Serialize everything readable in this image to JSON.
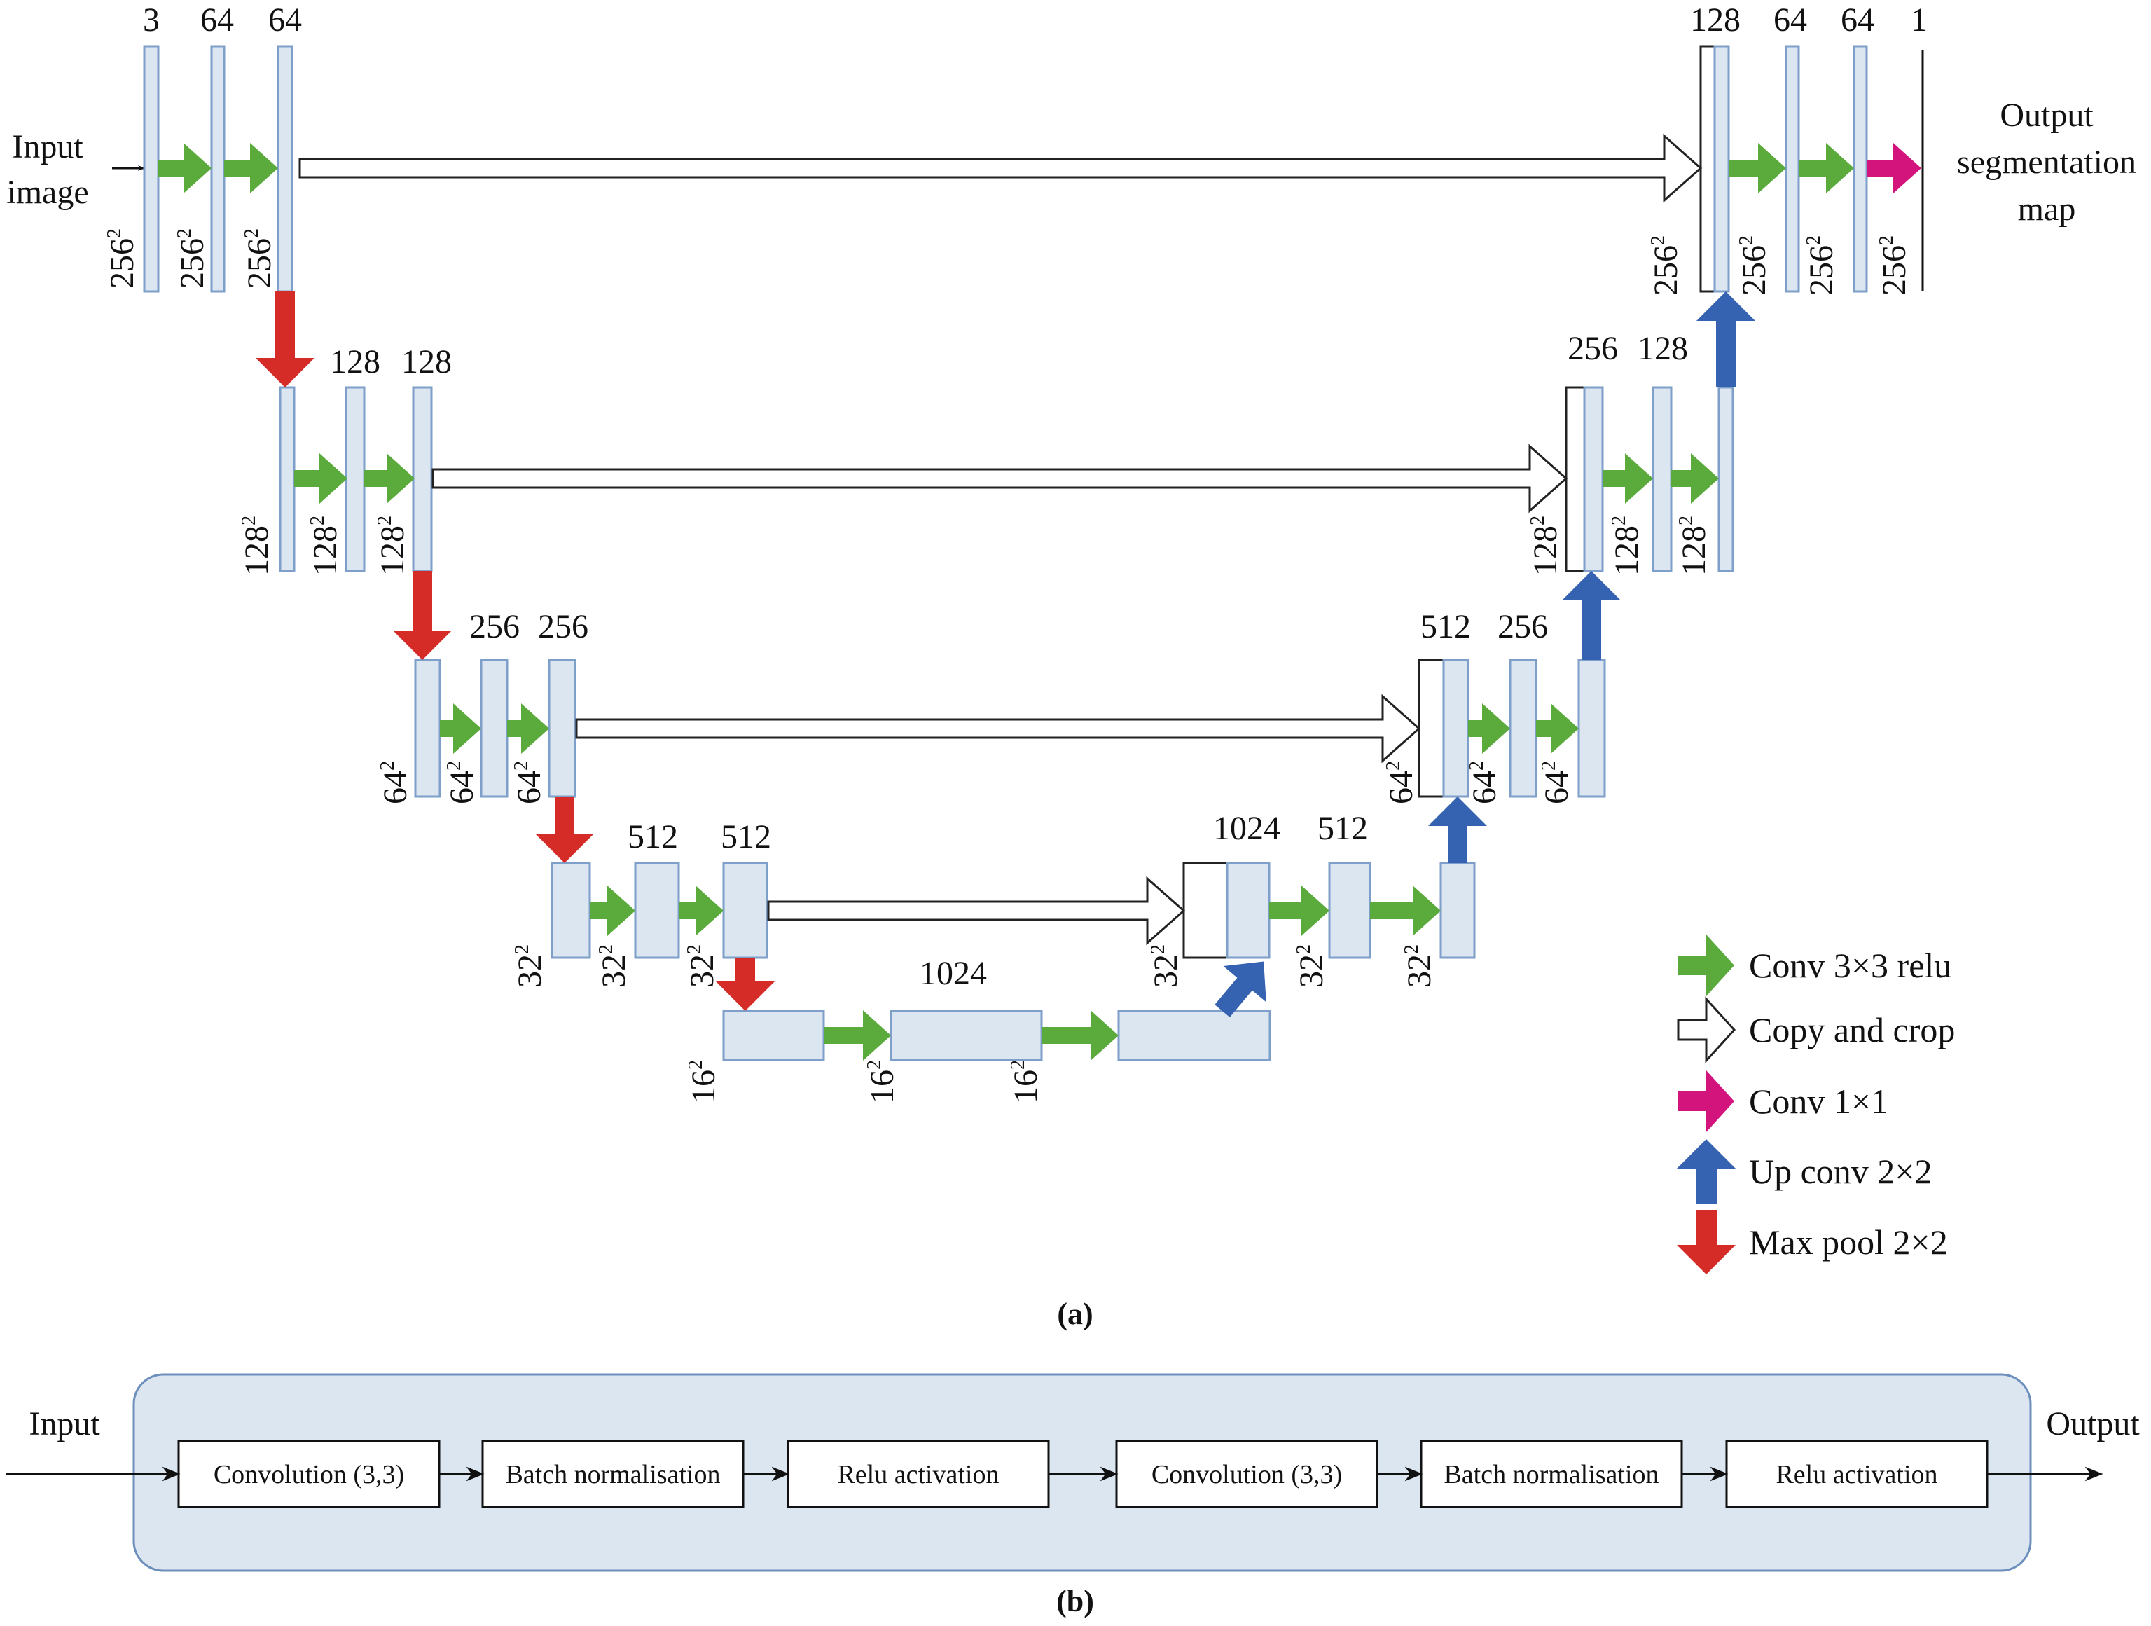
{
  "colors": {
    "block_fill": "#dce6f1",
    "block_stroke": "#7e9fc9",
    "conv": "#5aab3c",
    "copy": "#ffffff",
    "conv1x1": "#d4147d",
    "upconv": "#3662b2",
    "maxpool": "#d62c28",
    "panel_fill": "#dce6f1",
    "panel_stroke": "#6d8fbc"
  },
  "panel_a": {
    "caption": "(a)",
    "input_label": [
      "Input",
      "image"
    ],
    "output_label": [
      "Output",
      "segmentation",
      "map"
    ],
    "channels": [
      {
        "id": "l1-in",
        "text": "3"
      },
      {
        "id": "l1-c1",
        "text": "64"
      },
      {
        "id": "l1-c2",
        "text": "64"
      },
      {
        "id": "l2-c1",
        "text": "128"
      },
      {
        "id": "l2-c2",
        "text": "128"
      },
      {
        "id": "l3-c1",
        "text": "256"
      },
      {
        "id": "l3-c2",
        "text": "256"
      },
      {
        "id": "l4-c1",
        "text": "512"
      },
      {
        "id": "l4-c2",
        "text": "512"
      },
      {
        "id": "l5-c1",
        "text": "1024"
      },
      {
        "id": "u4-cat",
        "text": "1024"
      },
      {
        "id": "u4-c1",
        "text": "512"
      },
      {
        "id": "u3-cat",
        "text": "512"
      },
      {
        "id": "u3-c1",
        "text": "256"
      },
      {
        "id": "u2-cat",
        "text": "256"
      },
      {
        "id": "u2-c1",
        "text": "128"
      },
      {
        "id": "u1-cat",
        "text": "128"
      },
      {
        "id": "u1-c1",
        "text": "64"
      },
      {
        "id": "u1-c2",
        "text": "64"
      },
      {
        "id": "out",
        "text": "1"
      }
    ],
    "sizes": [
      {
        "id": "l1-a",
        "base": "256",
        "exp": "2"
      },
      {
        "id": "l1-b",
        "base": "256",
        "exp": "2"
      },
      {
        "id": "l1-c",
        "base": "256",
        "exp": "2"
      },
      {
        "id": "l2-a",
        "base": "128",
        "exp": "2"
      },
      {
        "id": "l2-b",
        "base": "128",
        "exp": "2"
      },
      {
        "id": "l2-c",
        "base": "128",
        "exp": "2"
      },
      {
        "id": "l3-a",
        "base": "64",
        "exp": "2"
      },
      {
        "id": "l3-b",
        "base": "64",
        "exp": "2"
      },
      {
        "id": "l3-c",
        "base": "64",
        "exp": "2"
      },
      {
        "id": "l4-a",
        "base": "32",
        "exp": "2"
      },
      {
        "id": "l4-b",
        "base": "32",
        "exp": "2"
      },
      {
        "id": "l4-c",
        "base": "32",
        "exp": "2"
      },
      {
        "id": "l5-a",
        "base": "16",
        "exp": "2"
      },
      {
        "id": "l5-b",
        "base": "16",
        "exp": "2"
      },
      {
        "id": "l5-c",
        "base": "16",
        "exp": "2"
      },
      {
        "id": "u4-a",
        "base": "32",
        "exp": "2"
      },
      {
        "id": "u4-b",
        "base": "32",
        "exp": "2"
      },
      {
        "id": "u4-c",
        "base": "32",
        "exp": "2"
      },
      {
        "id": "u3-a",
        "base": "64",
        "exp": "2"
      },
      {
        "id": "u3-b",
        "base": "64",
        "exp": "2"
      },
      {
        "id": "u3-c",
        "base": "64",
        "exp": "2"
      },
      {
        "id": "u2-a",
        "base": "128",
        "exp": "2"
      },
      {
        "id": "u2-b",
        "base": "128",
        "exp": "2"
      },
      {
        "id": "u2-c",
        "base": "128",
        "exp": "2"
      },
      {
        "id": "u1-a",
        "base": "256",
        "exp": "2"
      },
      {
        "id": "u1-b",
        "base": "256",
        "exp": "2"
      },
      {
        "id": "u1-c",
        "base": "256",
        "exp": "2"
      },
      {
        "id": "u1-d",
        "base": "256",
        "exp": "2"
      }
    ],
    "legend": [
      {
        "type": "conv",
        "label": "Conv 3×3 relu"
      },
      {
        "type": "copy",
        "label": "Copy and crop"
      },
      {
        "type": "conv1x1",
        "label": "Conv 1×1"
      },
      {
        "type": "upconv",
        "label": "Up conv 2×2"
      },
      {
        "type": "maxpool",
        "label": "Max pool 2×2"
      }
    ]
  },
  "panel_b": {
    "caption": "(b)",
    "input_label": "Input",
    "output_label": "Output",
    "steps": [
      "Convolution (3,3)",
      "Batch normalisation",
      "Relu activation",
      "Convolution (3,3)",
      "Batch normalisation",
      "Relu activation"
    ]
  }
}
